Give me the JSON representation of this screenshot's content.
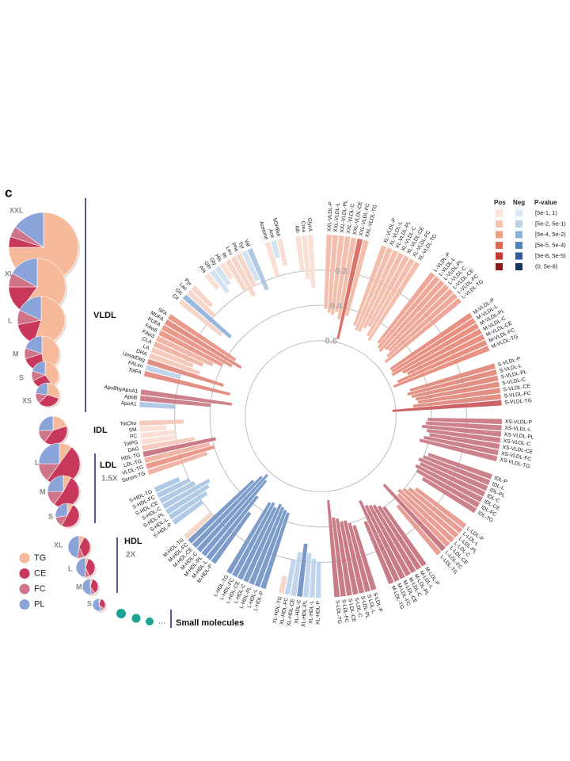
{
  "chart_data": [
    {
      "type": "pie",
      "panel": "c",
      "legend": {
        "labels": [
          "TG",
          "CE",
          "FC",
          "PL"
        ],
        "colors": [
          "#f6b99a",
          "#c8385b",
          "#d0748a",
          "#8aa3d8"
        ]
      },
      "classes": [
        {
          "label": "VLDL",
          "particles": [
            {
              "label": "XXL",
              "values": [
                75,
                5,
                5,
                15
              ]
            },
            {
              "label": "XL",
              "values": [
                60,
                15,
                8,
                17
              ]
            },
            {
              "label": "L",
              "values": [
                55,
                17,
                10,
                18
              ]
            },
            {
              "label": "M",
              "values": [
                48,
                22,
                10,
                20
              ]
            },
            {
              "label": "S",
              "values": [
                40,
                28,
                12,
                20
              ]
            },
            {
              "label": "XS",
              "values": [
                30,
                33,
                14,
                23
              ]
            }
          ]
        },
        {
          "label": "IDL",
          "particles": [
            {
              "values": [
                20,
                40,
                15,
                25
              ]
            }
          ]
        },
        {
          "label": "LDL",
          "note": "1.5X",
          "particles": [
            {
              "label": "L",
              "values": [
                10,
                50,
                15,
                25
              ]
            },
            {
              "label": "M",
              "values": [
                8,
                52,
                15,
                25
              ]
            },
            {
              "label": "S",
              "values": [
                8,
                50,
                14,
                28
              ]
            }
          ]
        },
        {
          "label": "HDL",
          "note": "2X",
          "particles": [
            {
              "label": "XL",
              "values": [
                8,
                35,
                10,
                47
              ]
            },
            {
              "label": "L",
              "values": [
                5,
                38,
                8,
                49
              ]
            },
            {
              "label": "M",
              "values": [
                5,
                35,
                8,
                52
              ]
            },
            {
              "label": "S",
              "values": [
                5,
                30,
                8,
                57
              ]
            }
          ]
        },
        {
          "label": "Small molecules",
          "particles": []
        }
      ]
    },
    {
      "type": "radial-bar",
      "rlim": [
        0,
        0.7
      ],
      "rticks": [
        0.2,
        0.4,
        0.6
      ],
      "legend": {
        "pos_label": "Pos",
        "neg_label": "Neg",
        "title": "P-value",
        "bins": [
          "[5e-1, 1)",
          "[5e-2, 5e-1)",
          "[5e-4, 5e-2)",
          "[5e-5, 5e-4)",
          "[5e-8, 5e-5)",
          "(0, 5e-8)"
        ],
        "pos_colors": [
          "#fbe3d9",
          "#f6c4b3",
          "#ee9f8a",
          "#dd6a55",
          "#c23a30",
          "#8a1c1c"
        ],
        "neg_colors": [
          "#dce9f4",
          "#b7d3ea",
          "#85b2d8",
          "#4f85bf",
          "#2c5c9a",
          "#163764"
        ]
      },
      "groups": [
        {
          "categories": [
            "XXL-VLDL-P",
            "XXL-VLDL-L",
            "XXL-VLDL-PL",
            "XXL-VLDL-C",
            "XXL-VLDL-CE",
            "XXL-VLDL-FC",
            "XXL-VLDL-TG"
          ],
          "values": [
            0.42,
            0.44,
            0.45,
            0.43,
            0.47,
            0.58,
            0.44
          ],
          "colors": [
            "#f3b8a6",
            "#f3b8a6",
            "#f3b8a6",
            "#f3b8a6",
            "#f3b8a6",
            "#d9675c",
            "#f3b8a6"
          ]
        },
        {
          "categories": [
            "XL-VLDL-P",
            "XL-VLDL-L",
            "XL-VLDL-PL",
            "XL-VLDL-C",
            "XL-VLDL-CE",
            "XL-VLDL-FC",
            "XL-VLDL-TG"
          ],
          "values": [
            0.48,
            0.5,
            0.5,
            0.47,
            0.45,
            0.5,
            0.52
          ],
          "color": "#f3b8a6"
        },
        {
          "categories": [
            "L-VLDL-P",
            "L-VLDL-L",
            "L-VLDL-PL",
            "L-VLDL-C",
            "L-VLDL-CE",
            "L-VLDL-FC",
            "L-VLDL-TG"
          ],
          "values": [
            0.5,
            0.52,
            0.53,
            0.5,
            0.49,
            0.52,
            0.55
          ],
          "color": "#eda08f"
        },
        {
          "categories": [
            "M-VLDL-P",
            "M-VLDL-L",
            "M-VLDL-PL",
            "M-VLDL-C",
            "M-VLDL-CE",
            "M-VLDL-FC",
            "M-VLDL-TG"
          ],
          "values": [
            0.55,
            0.55,
            0.56,
            0.5,
            0.48,
            0.55,
            0.58
          ],
          "color": "#e68878"
        },
        {
          "categories": [
            "S-VLDL-P",
            "S-VLDL-L",
            "S-VLDL-PL",
            "S-VLDL-C",
            "S-VLDL-CE",
            "S-VLDL-FC",
            "S-VLDL-TG"
          ],
          "values": [
            0.5,
            0.52,
            0.5,
            0.48,
            0.47,
            0.5,
            0.62
          ],
          "colors": [
            "#e0857a",
            "#e0857a",
            "#e0857a",
            "#e0857a",
            "#e0857a",
            "#e0857a",
            "#c9565a"
          ]
        },
        {
          "categories": [
            "XS-VLDL-P",
            "XS-VLDL-L",
            "XS-VLDL-PL",
            "XS-VLDL-C",
            "XS-VLDL-CE",
            "XS-VLDL-FC",
            "XS-VLDL-TG"
          ],
          "values": [
            0.42,
            0.43,
            0.45,
            0.42,
            0.4,
            0.43,
            0.45
          ],
          "color": "#c97680"
        },
        {
          "categories": [
            "IDL-P",
            "IDL-L",
            "IDL-PL",
            "IDL-C",
            "IDL-CE",
            "IDL-FC",
            "IDL-TG"
          ],
          "values": [
            0.38,
            0.4,
            0.42,
            0.4,
            0.42,
            0.4,
            0.35
          ],
          "color": "#c97680"
        },
        {
          "categories": [
            "L-LDL-P",
            "L-LDL-L",
            "L-LDL-PL",
            "L-LDL-C",
            "L-LDL-CE",
            "L-LDL-FC",
            "L-LDL-TG"
          ],
          "values": [
            0.35,
            0.38,
            0.4,
            0.42,
            0.4,
            0.5,
            0.36
          ],
          "colors": [
            "#e7968c",
            "#e7968c",
            "#e7968c",
            "#e7968c",
            "#e7968c",
            "#c4707c",
            "#e7968c"
          ]
        },
        {
          "categories": [
            "M-LDL-P",
            "M-LDL-L",
            "M-LDL-PL",
            "M-LDL-C",
            "M-LDL-CE",
            "M-LDL-FC",
            "M-LDL-TG"
          ],
          "values": [
            0.4,
            0.42,
            0.44,
            0.45,
            0.46,
            0.5,
            0.38
          ],
          "color": "#c4707c"
        },
        {
          "categories": [
            "S-LDL-P",
            "S-LDL-L",
            "S-LDL-PL",
            "S-LDL-C",
            "S-LDL-CE",
            "S-LDL-FC",
            "S-LDL-TG"
          ],
          "values": [
            0.38,
            0.4,
            0.42,
            0.42,
            0.44,
            0.45,
            0.55
          ],
          "color": "#c4707c"
        },
        {
          "categories": [
            "XL-HDL-P",
            "XL-HDL-L",
            "XL-HDL-PL",
            "XL-HDL-C",
            "XL-HDL-CE",
            "XL-HDL-FC",
            "XL-HDL-TG"
          ],
          "values": [
            0.2,
            0.22,
            0.25,
            0.3,
            0.25,
            0.2,
            0.1
          ],
          "colors": [
            "#bcd3ea",
            "#bcd3ea",
            "#bcd3ea",
            "#6f8fc2",
            "#bcd3ea",
            "#bcd3ea",
            "#f6d3c6"
          ]
        },
        {
          "categories": [
            "L-HDL-P",
            "L-HDL-L",
            "L-HDL-PL",
            "L-HDL-C",
            "L-HDL-CE",
            "L-HDL-FC",
            "L-HDL-TG"
          ],
          "values": [
            0.45,
            0.46,
            0.47,
            0.48,
            0.45,
            0.47,
            0.46
          ],
          "color": "#7394c6"
        },
        {
          "categories": [
            "M-HDL-P",
            "M-HDL-L",
            "M-HDL-PL",
            "M-HDL-C",
            "M-HDL-CE",
            "M-HDL-FC",
            "M-HDL-TG"
          ],
          "values": [
            0.35,
            0.45,
            0.55,
            0.58,
            0.55,
            0.5,
            0.2
          ],
          "colors": [
            "#7394c6",
            "#7394c6",
            "#7394c6",
            "#7394c6",
            "#7394c6",
            "#7394c6",
            "#f6d3c6"
          ]
        },
        {
          "categories": [
            "S-HDL-P",
            "S-HDL-L",
            "S-HDL-PL",
            "S-HDL-C",
            "S-HDL-CE",
            "S-HDL-FC",
            "S-HDL-TG"
          ],
          "values": [
            0.2,
            0.25,
            0.28,
            0.3,
            0.22,
            0.2,
            0.15
          ],
          "color": "#a9c6e3"
        },
        {
          "categories": [
            "Serum-TG",
            "VLDL-TG",
            "LDL-TG",
            "HDL-TG",
            "DAG",
            "TotPG",
            "PC",
            "SM",
            "TotCho"
          ],
          "values": [
            0.35,
            0.4,
            0.38,
            0.42,
            0.3,
            0.2,
            0.2,
            0.15,
            0.25
          ],
          "colors": [
            "#f0b09f",
            "#e89080",
            "#f0b09f",
            "#c4707c",
            "#f4c7b8",
            "#f9dcd0",
            "#f9dcd0",
            "#f9dcd0",
            "#f4c7b8"
          ]
        },
        {
          "categories": [
            "ApoA1",
            "ApoB",
            "ApoBbyApoA1"
          ],
          "values": [
            0.2,
            0.4,
            0.52
          ],
          "colors": [
            "#a9c6e3",
            "#c97680",
            "#c97680"
          ]
        },
        {
          "categories": [
            "TotFA",
            "FALen",
            "UnsatDeg",
            "DHA",
            "LA",
            "CLA",
            "FAw3",
            "FAw6",
            "PUFA",
            "MUFA",
            "SFA"
          ],
          "values": [
            0.5,
            0.2,
            0.45,
            0.3,
            0.25,
            0.3,
            0.35,
            0.4,
            0.45,
            0.5,
            0.45
          ],
          "colors": [
            "#e0857a",
            "#bcd3ea",
            "#e0857a",
            "#f4c7b8",
            "#f4c7b8",
            "#f0b09f",
            "#f0b09f",
            "#e89080",
            "#e89080",
            "#e0857a",
            "#e89080"
          ]
        },
        {
          "categories": [
            "Cit",
            "Glc",
            "Lac",
            "Pyr"
          ],
          "values": [
            0.3,
            0.35,
            0.2,
            0.15
          ],
          "colors": [
            "#f6d3c6",
            "#8fb3da",
            "#f6d3c6",
            "#f6d3c6"
          ]
        },
        {
          "categories": [
            "Ala",
            "Gln",
            "Gly",
            "His",
            "Ile",
            "Leu",
            "Phe",
            "Tyr",
            "Val"
          ],
          "values": [
            0.1,
            0.15,
            0.12,
            0.1,
            0.2,
            0.25,
            0.2,
            0.18,
            0.25
          ],
          "colors": [
            "#f9dcd0",
            "#cfe0ef",
            "#cfe0ef",
            "#f9dcd0",
            "#f6d3c6",
            "#f6d3c6",
            "#f6d3c6",
            "#cfe0ef",
            "#a9c6e3"
          ]
        },
        {
          "categories": [
            "Acetone",
            "Ace",
            "bOHBut"
          ],
          "values": [
            0.2,
            0.1,
            0.15
          ],
          "colors": [
            "#f9dcd0",
            "#cfe0ef",
            "#f9dcd0"
          ]
        },
        {
          "categories": [
            "Alb",
            "Crea",
            "GlycA"
          ],
          "values": [
            0.2,
            0.25,
            0.3
          ],
          "color": "#f9dcd0"
        }
      ]
    }
  ]
}
